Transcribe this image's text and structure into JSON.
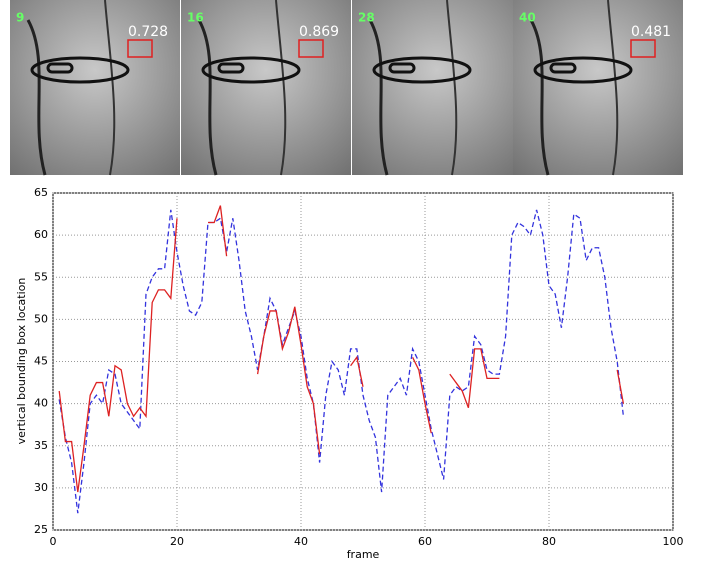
{
  "panels": [
    {
      "frame_label": "9",
      "score": "0.728"
    },
    {
      "frame_label": "16",
      "score": "0.869"
    },
    {
      "frame_label": "28"
    },
    {
      "frame_label": "40",
      "score": "0.481"
    }
  ],
  "chart_data": {
    "type": "line",
    "xlabel": "frame",
    "ylabel": "vertical bounding box location",
    "x": [
      1,
      2,
      3,
      4,
      5,
      6,
      7,
      8,
      9,
      10,
      11,
      12,
      13,
      14,
      15,
      16,
      17,
      18,
      19,
      20,
      21,
      22,
      23,
      24,
      25,
      26,
      27,
      28,
      29,
      30,
      31,
      32,
      33,
      34,
      35,
      36,
      37,
      38,
      39,
      40,
      41,
      42,
      43,
      44,
      45,
      46,
      47,
      48,
      49,
      50,
      51,
      52,
      53,
      54,
      55,
      56,
      57,
      58,
      59,
      60,
      61,
      62,
      63,
      64,
      65,
      66,
      67,
      68,
      69,
      70,
      71,
      72,
      73,
      74,
      75,
      76,
      77,
      78,
      79,
      80,
      81,
      82,
      83,
      84,
      85,
      86,
      87,
      88,
      89,
      90,
      91,
      92
    ],
    "series": [
      {
        "color": "#3333dd",
        "dashed": true,
        "values": [
          40.5,
          36,
          33,
          27,
          33,
          40,
          41,
          40,
          44,
          43.5,
          40,
          39,
          38,
          37,
          53,
          55,
          56,
          56,
          63,
          58,
          54,
          51,
          50.5,
          52,
          61.5,
          61.5,
          62,
          58,
          62,
          57,
          51,
          48,
          44,
          48,
          52.5,
          51,
          47,
          49,
          51,
          48,
          43,
          40,
          33,
          41,
          45,
          44,
          41,
          46.5,
          46.5,
          41,
          38,
          36,
          29.5,
          41,
          42,
          43,
          41,
          46.5,
          45,
          41,
          37,
          34,
          31,
          41,
          42,
          41.5,
          42,
          48,
          47,
          44,
          43.5,
          43.5,
          48,
          60,
          61.5,
          61,
          60,
          63,
          60,
          54,
          53,
          49,
          55,
          62.5,
          62,
          57,
          58.5,
          58.5,
          55,
          49,
          45,
          38.5
        ]
      },
      {
        "color": "#dd2222",
        "dashed": false,
        "values": [
          41.5,
          35.5,
          35.5,
          29.5,
          35,
          41,
          42.5,
          42.5,
          38.5,
          44.5,
          44,
          40,
          38.5,
          39.5,
          38.5,
          52,
          53.5,
          53.5,
          52.5,
          62,
          null,
          null,
          null,
          null,
          61.5,
          61.5,
          63.5,
          57.5,
          null,
          null,
          null,
          null,
          43.5,
          48,
          51,
          51,
          46.5,
          48.5,
          51.5,
          47,
          42,
          40,
          34,
          null,
          null,
          null,
          null,
          44.5,
          45.5,
          42,
          null,
          null,
          null,
          null,
          null,
          null,
          null,
          45.5,
          44,
          40,
          36.5,
          null,
          null,
          43.5,
          42.5,
          41.5,
          39.5,
          46.5,
          46.5,
          43,
          43,
          43,
          null,
          null,
          null,
          null,
          null,
          null,
          null,
          null,
          null,
          null,
          null,
          null,
          null,
          null,
          null,
          null,
          null,
          null,
          44,
          40
        ]
      }
    ],
    "xlim": [
      0,
      100
    ],
    "xticks": [
      0,
      20,
      40,
      60,
      80,
      100
    ],
    "ylim": [
      25,
      65
    ],
    "yticks": [
      25,
      30,
      35,
      40,
      45,
      50,
      55,
      60,
      65
    ],
    "grid": true
  }
}
